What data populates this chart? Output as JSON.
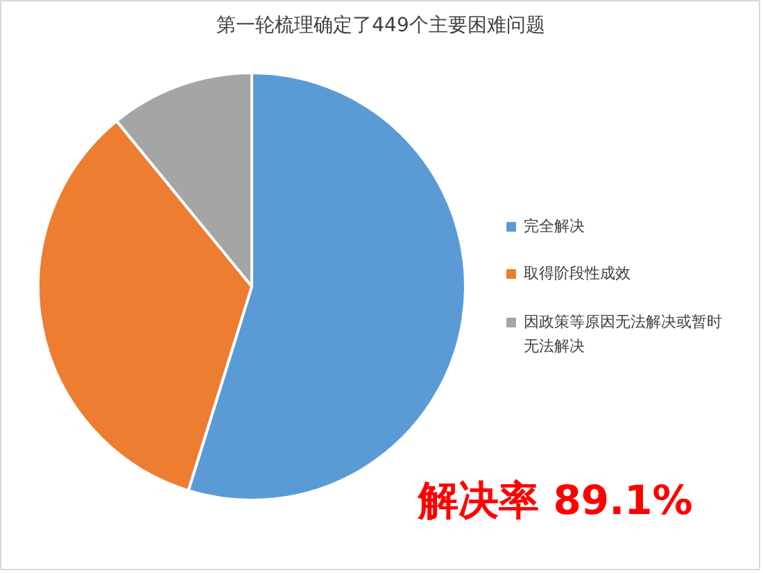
{
  "chart_data": {
    "type": "pie",
    "title": "第一轮梳理确定了449个主要困难问题",
    "categories": [
      "完全解决",
      "取得阶段性成效",
      "因政策等原因无法解决或暂时无法解决"
    ],
    "values": [
      54.8,
      34.3,
      10.9
    ],
    "colors": [
      "#5b9bd5",
      "#ed7d31",
      "#a5a5a5"
    ],
    "legend": "right",
    "annotations": [
      "解决率 89.1%"
    ]
  }
}
